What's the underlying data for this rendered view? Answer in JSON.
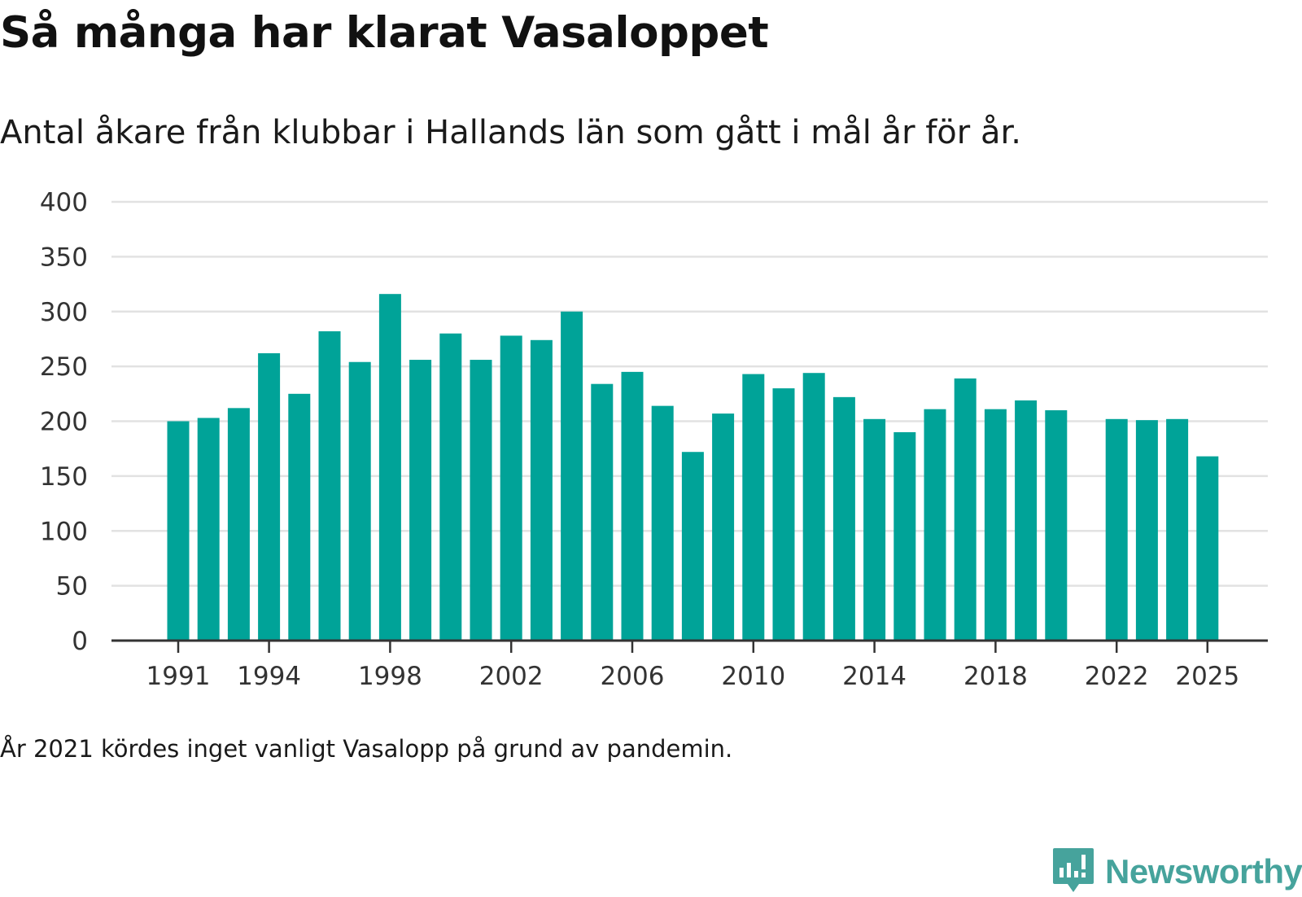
{
  "title": "Så många har klarat Vasaloppet",
  "subtitle": "Antal åkare från klubbar i Hallands län som gått i mål år för år.",
  "footnote": "År 2021 kördes inget vanligt Vasalopp på grund av pandemin.",
  "brand": {
    "name": "Newsworthy",
    "icon": "newsworthy-logo-icon",
    "color": "#46a39c"
  },
  "chart_data": {
    "type": "bar",
    "title": "Så många har klarat Vasaloppet",
    "subtitle": "Antal åkare från klubbar i Hallands län som gått i mål år för år.",
    "xlabel": "",
    "ylabel": "",
    "ylim": [
      0,
      400
    ],
    "yticks": [
      0,
      50,
      100,
      150,
      200,
      250,
      300,
      350,
      400
    ],
    "xticks": [
      1991,
      1994,
      1998,
      2002,
      2006,
      2010,
      2014,
      2018,
      2022,
      2025
    ],
    "grid": true,
    "bar_color": "#00a398",
    "categories": [
      1991,
      1992,
      1993,
      1994,
      1995,
      1996,
      1997,
      1998,
      1999,
      2000,
      2001,
      2002,
      2003,
      2004,
      2005,
      2006,
      2007,
      2008,
      2009,
      2010,
      2011,
      2012,
      2013,
      2014,
      2015,
      2016,
      2017,
      2018,
      2019,
      2020,
      2021,
      2022,
      2023,
      2024,
      2025
    ],
    "values": [
      200,
      203,
      212,
      262,
      225,
      282,
      254,
      316,
      256,
      280,
      256,
      278,
      274,
      300,
      234,
      245,
      214,
      172,
      207,
      243,
      230,
      244,
      222,
      202,
      190,
      211,
      239,
      211,
      219,
      210,
      null,
      202,
      201,
      202,
      168
    ]
  }
}
